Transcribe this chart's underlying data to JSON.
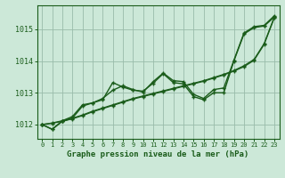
{
  "bg_color": "#cce8d8",
  "grid_color": "#99bbaa",
  "line_color": "#1a5c1a",
  "title": "Graphe pression niveau de la mer (hPa)",
  "ylim": [
    1011.55,
    1015.75
  ],
  "xlim": [
    -0.5,
    23.5
  ],
  "yticks": [
    1012,
    1013,
    1014,
    1015
  ],
  "xticks": [
    0,
    1,
    2,
    3,
    4,
    5,
    6,
    7,
    8,
    9,
    10,
    11,
    12,
    13,
    14,
    15,
    16,
    17,
    18,
    19,
    20,
    21,
    22,
    23
  ],
  "noisy1": [
    1012.0,
    1011.85,
    1012.1,
    1012.2,
    1012.58,
    1012.68,
    1012.78,
    1013.32,
    1013.18,
    1013.08,
    1013.05,
    1013.3,
    1013.6,
    1013.32,
    1013.28,
    1012.88,
    1012.78,
    1013.0,
    1013.0,
    1014.0,
    1014.85,
    1015.05,
    1015.1,
    1015.38
  ],
  "noisy2": [
    1012.0,
    1011.85,
    1012.12,
    1012.25,
    1012.62,
    1012.68,
    1012.82,
    1013.08,
    1013.22,
    1013.1,
    1013.02,
    1013.35,
    1013.62,
    1013.38,
    1013.35,
    1012.95,
    1012.82,
    1013.1,
    1013.15,
    1014.02,
    1014.88,
    1015.08,
    1015.12,
    1015.42
  ],
  "smooth1": [
    1012.0,
    1012.05,
    1012.12,
    1012.2,
    1012.3,
    1012.42,
    1012.52,
    1012.62,
    1012.72,
    1012.82,
    1012.9,
    1012.98,
    1013.06,
    1013.14,
    1013.22,
    1013.3,
    1013.38,
    1013.48,
    1013.58,
    1013.7,
    1013.85,
    1014.05,
    1014.55,
    1015.38
  ],
  "smooth2": [
    1012.0,
    1012.04,
    1012.1,
    1012.18,
    1012.28,
    1012.4,
    1012.5,
    1012.6,
    1012.7,
    1012.8,
    1012.88,
    1012.96,
    1013.04,
    1013.12,
    1013.2,
    1013.28,
    1013.36,
    1013.46,
    1013.56,
    1013.68,
    1013.82,
    1014.02,
    1014.52,
    1015.35
  ]
}
